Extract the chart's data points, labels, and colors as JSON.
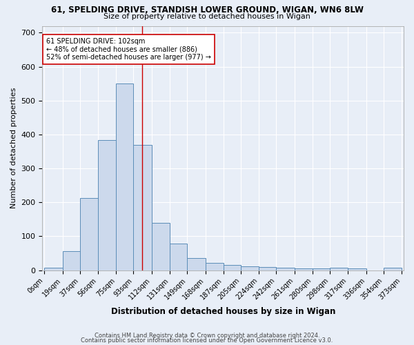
{
  "title": "61, SPELDING DRIVE, STANDISH LOWER GROUND, WIGAN, WN6 8LW",
  "subtitle": "Size of property relative to detached houses in Wigan",
  "xlabel": "Distribution of detached houses by size in Wigan",
  "ylabel": "Number of detached properties",
  "bin_labels": [
    "0sqm",
    "19sqm",
    "37sqm",
    "56sqm",
    "75sqm",
    "93sqm",
    "112sqm",
    "131sqm",
    "149sqm",
    "168sqm",
    "187sqm",
    "205sqm",
    "224sqm",
    "242sqm",
    "261sqm",
    "280sqm",
    "298sqm",
    "317sqm",
    "336sqm",
    "354sqm",
    "373sqm"
  ],
  "bar_values": [
    7,
    55,
    212,
    383,
    550,
    370,
    140,
    78,
    35,
    22,
    16,
    11,
    10,
    7,
    6,
    5,
    8,
    5,
    0,
    7
  ],
  "bin_edges": [
    0,
    19,
    37,
    56,
    75,
    93,
    112,
    131,
    149,
    168,
    187,
    205,
    224,
    242,
    261,
    280,
    298,
    317,
    336,
    354,
    373
  ],
  "bar_color": "#ccd9ec",
  "bar_edge_color": "#5b8db8",
  "vline_x": 102,
  "vline_color": "#cc0000",
  "annotation_text": "61 SPELDING DRIVE: 102sqm\n← 48% of detached houses are smaller (886)\n52% of semi-detached houses are larger (977) →",
  "ylim": [
    0,
    720
  ],
  "yticks": [
    0,
    100,
    200,
    300,
    400,
    500,
    600,
    700
  ],
  "bg_color": "#e8eef7",
  "grid_color": "#ffffff",
  "footer_line1": "Contains HM Land Registry data © Crown copyright and database right 2024.",
  "footer_line2": "Contains public sector information licensed under the Open Government Licence v3.0."
}
